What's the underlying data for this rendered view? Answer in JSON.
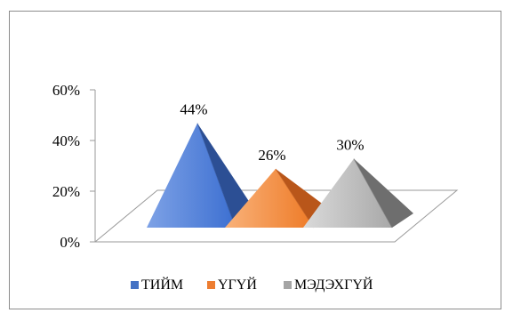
{
  "header": {
    "text": ""
  },
  "chart_data": {
    "type": "bar",
    "subtype": "3d-pyramid",
    "title": "",
    "xlabel": "",
    "ylabel": "",
    "categories": [
      "ТИЙМ",
      "ҮГҮЙ",
      "МЭДЭХГҮЙ"
    ],
    "values": [
      0.44,
      0.26,
      0.3
    ],
    "data_labels": [
      "44%",
      "26%",
      "30%"
    ],
    "colors": [
      "#4472c4",
      "#ed7d31",
      "#a5a5a5"
    ],
    "ylim": [
      0,
      0.6
    ],
    "yticks": [
      {
        "value": 0.0,
        "label": "0%"
      },
      {
        "value": 0.2,
        "label": "20%"
      },
      {
        "value": 0.4,
        "label": "40%"
      },
      {
        "value": 0.6,
        "label": "60%"
      }
    ],
    "grid": false,
    "legend_position": "bottom"
  }
}
